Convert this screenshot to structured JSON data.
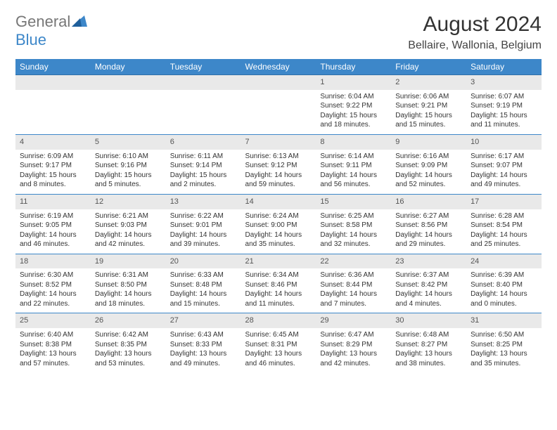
{
  "brand": {
    "top": "General",
    "bottom": "Blue"
  },
  "title": "August 2024",
  "location": "Bellaire, Wallonia, Belgium",
  "colors": {
    "header_bg": "#3d87c9",
    "header_text": "#ffffff",
    "daynum_bg": "#e9e9e9",
    "row_divider": "#3d87c9",
    "page_bg": "#ffffff",
    "title_color": "#333333",
    "brand_gray": "#777777",
    "brand_blue": "#3d87c9"
  },
  "typography": {
    "title_fontsize": 30,
    "location_fontsize": 16,
    "weekday_fontsize": 12,
    "cell_fontsize": 10
  },
  "weekdays": [
    "Sunday",
    "Monday",
    "Tuesday",
    "Wednesday",
    "Thursday",
    "Friday",
    "Saturday"
  ],
  "weeks": [
    [
      null,
      null,
      null,
      null,
      {
        "n": "1",
        "sunrise": "6:04 AM",
        "sunset": "9:22 PM",
        "dl": "15 hours and 18 minutes."
      },
      {
        "n": "2",
        "sunrise": "6:06 AM",
        "sunset": "9:21 PM",
        "dl": "15 hours and 15 minutes."
      },
      {
        "n": "3",
        "sunrise": "6:07 AM",
        "sunset": "9:19 PM",
        "dl": "15 hours and 11 minutes."
      }
    ],
    [
      {
        "n": "4",
        "sunrise": "6:09 AM",
        "sunset": "9:17 PM",
        "dl": "15 hours and 8 minutes."
      },
      {
        "n": "5",
        "sunrise": "6:10 AM",
        "sunset": "9:16 PM",
        "dl": "15 hours and 5 minutes."
      },
      {
        "n": "6",
        "sunrise": "6:11 AM",
        "sunset": "9:14 PM",
        "dl": "15 hours and 2 minutes."
      },
      {
        "n": "7",
        "sunrise": "6:13 AM",
        "sunset": "9:12 PM",
        "dl": "14 hours and 59 minutes."
      },
      {
        "n": "8",
        "sunrise": "6:14 AM",
        "sunset": "9:11 PM",
        "dl": "14 hours and 56 minutes."
      },
      {
        "n": "9",
        "sunrise": "6:16 AM",
        "sunset": "9:09 PM",
        "dl": "14 hours and 52 minutes."
      },
      {
        "n": "10",
        "sunrise": "6:17 AM",
        "sunset": "9:07 PM",
        "dl": "14 hours and 49 minutes."
      }
    ],
    [
      {
        "n": "11",
        "sunrise": "6:19 AM",
        "sunset": "9:05 PM",
        "dl": "14 hours and 46 minutes."
      },
      {
        "n": "12",
        "sunrise": "6:21 AM",
        "sunset": "9:03 PM",
        "dl": "14 hours and 42 minutes."
      },
      {
        "n": "13",
        "sunrise": "6:22 AM",
        "sunset": "9:01 PM",
        "dl": "14 hours and 39 minutes."
      },
      {
        "n": "14",
        "sunrise": "6:24 AM",
        "sunset": "9:00 PM",
        "dl": "14 hours and 35 minutes."
      },
      {
        "n": "15",
        "sunrise": "6:25 AM",
        "sunset": "8:58 PM",
        "dl": "14 hours and 32 minutes."
      },
      {
        "n": "16",
        "sunrise": "6:27 AM",
        "sunset": "8:56 PM",
        "dl": "14 hours and 29 minutes."
      },
      {
        "n": "17",
        "sunrise": "6:28 AM",
        "sunset": "8:54 PM",
        "dl": "14 hours and 25 minutes."
      }
    ],
    [
      {
        "n": "18",
        "sunrise": "6:30 AM",
        "sunset": "8:52 PM",
        "dl": "14 hours and 22 minutes."
      },
      {
        "n": "19",
        "sunrise": "6:31 AM",
        "sunset": "8:50 PM",
        "dl": "14 hours and 18 minutes."
      },
      {
        "n": "20",
        "sunrise": "6:33 AM",
        "sunset": "8:48 PM",
        "dl": "14 hours and 15 minutes."
      },
      {
        "n": "21",
        "sunrise": "6:34 AM",
        "sunset": "8:46 PM",
        "dl": "14 hours and 11 minutes."
      },
      {
        "n": "22",
        "sunrise": "6:36 AM",
        "sunset": "8:44 PM",
        "dl": "14 hours and 7 minutes."
      },
      {
        "n": "23",
        "sunrise": "6:37 AM",
        "sunset": "8:42 PM",
        "dl": "14 hours and 4 minutes."
      },
      {
        "n": "24",
        "sunrise": "6:39 AM",
        "sunset": "8:40 PM",
        "dl": "14 hours and 0 minutes."
      }
    ],
    [
      {
        "n": "25",
        "sunrise": "6:40 AM",
        "sunset": "8:38 PM",
        "dl": "13 hours and 57 minutes."
      },
      {
        "n": "26",
        "sunrise": "6:42 AM",
        "sunset": "8:35 PM",
        "dl": "13 hours and 53 minutes."
      },
      {
        "n": "27",
        "sunrise": "6:43 AM",
        "sunset": "8:33 PM",
        "dl": "13 hours and 49 minutes."
      },
      {
        "n": "28",
        "sunrise": "6:45 AM",
        "sunset": "8:31 PM",
        "dl": "13 hours and 46 minutes."
      },
      {
        "n": "29",
        "sunrise": "6:47 AM",
        "sunset": "8:29 PM",
        "dl": "13 hours and 42 minutes."
      },
      {
        "n": "30",
        "sunrise": "6:48 AM",
        "sunset": "8:27 PM",
        "dl": "13 hours and 38 minutes."
      },
      {
        "n": "31",
        "sunrise": "6:50 AM",
        "sunset": "8:25 PM",
        "dl": "13 hours and 35 minutes."
      }
    ]
  ],
  "labels": {
    "sunrise": "Sunrise:",
    "sunset": "Sunset:",
    "daylight": "Daylight:"
  }
}
